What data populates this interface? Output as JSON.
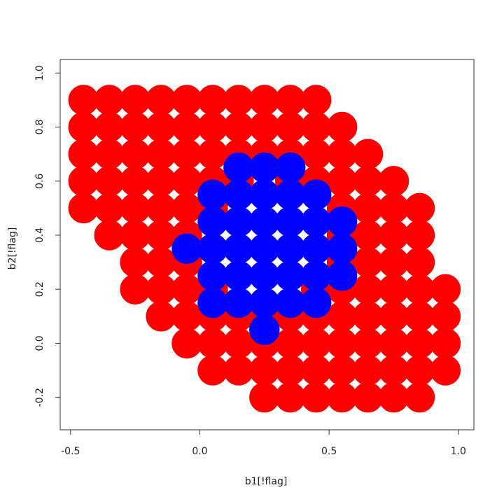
{
  "chart_data": {
    "type": "scatter",
    "xlabel": "b1[!flag]",
    "ylabel": "b2[!flag]",
    "xlim": [
      -0.54,
      1.06
    ],
    "ylim": [
      -0.32,
      1.05
    ],
    "xticks": [
      -0.5,
      {
        "value": 0,
        "label": "0.0"
      },
      0.5,
      {
        "value": 1,
        "label": "1.0"
      }
    ],
    "yticks": [
      -0.2,
      {
        "value": 0,
        "label": "0.0"
      },
      0.2,
      0.4,
      0.6,
      0.8,
      {
        "value": 1,
        "label": "1.0"
      }
    ],
    "grid": false,
    "series": [
      {
        "color": "#ff0000",
        "x": [
          -0.45,
          -0.35,
          -0.25,
          -0.15,
          -0.05,
          0.05,
          0.15,
          0.25,
          0.35,
          0.45,
          -0.45,
          -0.35,
          -0.25,
          -0.15,
          -0.05,
          0.05,
          0.15,
          0.25,
          0.35,
          0.45,
          0.55,
          -0.45,
          -0.35,
          -0.25,
          -0.15,
          -0.05,
          0.05,
          0.15,
          0.25,
          0.35,
          0.45,
          0.55,
          0.65,
          -0.45,
          -0.35,
          -0.25,
          -0.15,
          -0.05,
          0.05,
          0.15,
          0.35,
          0.45,
          0.55,
          0.65,
          0.75,
          -0.45,
          -0.35,
          -0.25,
          -0.15,
          -0.05,
          0.05,
          0.55,
          0.65,
          0.75,
          0.85,
          -0.35,
          -0.25,
          -0.15,
          -0.05,
          0.55,
          0.65,
          0.75,
          0.85,
          -0.25,
          -0.15,
          -0.05,
          0.55,
          0.65,
          0.75,
          0.85,
          -0.25,
          -0.15,
          -0.05,
          0.05,
          0.45,
          0.55,
          0.65,
          0.75,
          0.85,
          0.95,
          -0.15,
          -0.05,
          0.05,
          0.15,
          0.25,
          0.35,
          0.45,
          0.55,
          0.65,
          0.75,
          0.85,
          0.95,
          -0.05,
          0.05,
          0.15,
          0.25,
          0.35,
          0.45,
          0.55,
          0.65,
          0.75,
          0.85,
          0.95,
          0.05,
          0.15,
          0.25,
          0.35,
          0.45,
          0.55,
          0.65,
          0.75,
          0.85,
          0.95,
          0.25,
          0.35,
          0.45,
          0.55,
          0.65,
          0.75,
          0.85
        ],
        "values": [
          0.9,
          0.9,
          0.9,
          0.9,
          0.9,
          0.9,
          0.9,
          0.9,
          0.9,
          0.9,
          0.8,
          0.8,
          0.8,
          0.8,
          0.8,
          0.8,
          0.8,
          0.8,
          0.8,
          0.8,
          0.8,
          0.7,
          0.7,
          0.7,
          0.7,
          0.7,
          0.7,
          0.7,
          0.7,
          0.7,
          0.7,
          0.7,
          0.7,
          0.6,
          0.6,
          0.6,
          0.6,
          0.6,
          0.6,
          0.6,
          0.6,
          0.6,
          0.6,
          0.6,
          0.6,
          0.5,
          0.5,
          0.5,
          0.5,
          0.5,
          0.5,
          0.5,
          0.5,
          0.5,
          0.5,
          0.4,
          0.4,
          0.4,
          0.4,
          0.4,
          0.4,
          0.4,
          0.4,
          0.3,
          0.3,
          0.3,
          0.3,
          0.3,
          0.3,
          0.3,
          0.2,
          0.2,
          0.2,
          0.2,
          0.2,
          0.2,
          0.2,
          0.2,
          0.2,
          0.2,
          0.1,
          0.1,
          0.1,
          0.1,
          0.1,
          0.1,
          0.1,
          0.1,
          0.1,
          0.1,
          0.1,
          0.1,
          0,
          0,
          0,
          0,
          0,
          0,
          0,
          0,
          0,
          0,
          0,
          -0.1,
          -0.1,
          -0.1,
          -0.1,
          -0.1,
          -0.1,
          -0.1,
          -0.1,
          -0.1,
          -0.1,
          -0.2,
          -0.2,
          -0.2,
          -0.2,
          -0.2,
          -0.2,
          -0.2
        ]
      },
      {
        "color": "#0000ff",
        "x": [
          0.25,
          0.05,
          0.15,
          0.25,
          0.35,
          0.45,
          0.05,
          0.15,
          0.25,
          0.35,
          0.45,
          0.55,
          -0.05,
          0.05,
          0.15,
          0.25,
          0.35,
          0.45,
          0.55,
          0.05,
          0.15,
          0.25,
          0.35,
          0.45,
          0.55,
          0.05,
          0.15,
          0.25,
          0.35,
          0.45,
          0.15,
          0.25,
          0.35
        ],
        "values": [
          0.05,
          0.15,
          0.15,
          0.15,
          0.15,
          0.15,
          0.25,
          0.25,
          0.25,
          0.25,
          0.25,
          0.25,
          0.35,
          0.35,
          0.35,
          0.35,
          0.35,
          0.35,
          0.35,
          0.45,
          0.45,
          0.45,
          0.45,
          0.45,
          0.45,
          0.55,
          0.55,
          0.55,
          0.55,
          0.55,
          0.65,
          0.65,
          0.65
        ]
      }
    ]
  }
}
